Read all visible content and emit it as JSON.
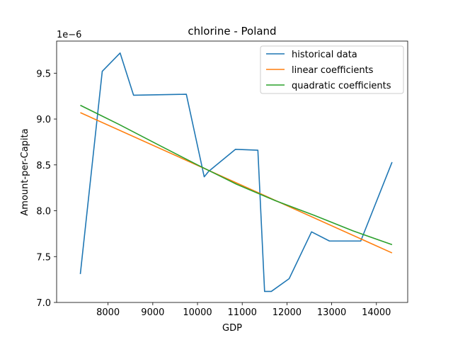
{
  "chart_data": {
    "type": "line",
    "title": "chlorine - Poland",
    "xlabel": "GDP",
    "ylabel": "Amount-per-Capita",
    "y_offset_label": "1e−6",
    "xlim": [
      6850,
      14700
    ],
    "ylim": [
      7.0,
      9.85
    ],
    "x_ticks": [
      8000,
      9000,
      10000,
      11000,
      12000,
      13000,
      14000
    ],
    "y_ticks": [
      7.0,
      7.5,
      8.0,
      8.5,
      9.0,
      9.5
    ],
    "grid": false,
    "legend_position": "top-right",
    "series": [
      {
        "name": "historical data",
        "color": "#1f77b4",
        "x": [
          7380,
          7870,
          8270,
          8570,
          9750,
          10150,
          10250,
          10850,
          11350,
          11500,
          11650,
          12050,
          12550,
          12950,
          13650,
          14350
        ],
        "y": [
          7.31,
          9.52,
          9.72,
          9.26,
          9.27,
          8.37,
          8.43,
          8.67,
          8.66,
          7.12,
          7.12,
          7.26,
          7.77,
          7.67,
          7.67,
          8.53
        ]
      },
      {
        "name": "linear coefficients",
        "color": "#ff7f0e",
        "x": [
          7380,
          14350
        ],
        "y": [
          9.07,
          7.54
        ]
      },
      {
        "name": "quadratic coefficients",
        "color": "#2ca02c",
        "x": [
          7380,
          8250,
          9120,
          10000,
          10870,
          11740,
          12610,
          13480,
          14350
        ],
        "y": [
          9.15,
          8.94,
          8.72,
          8.5,
          8.29,
          8.11,
          7.95,
          7.78,
          7.63
        ]
      }
    ]
  }
}
